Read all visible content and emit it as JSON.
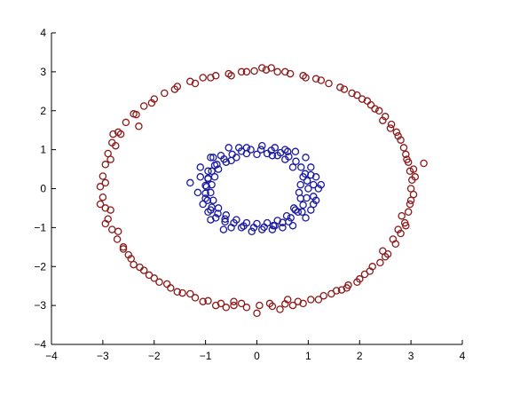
{
  "chart_data": {
    "type": "scatter",
    "title": "",
    "xlabel": "",
    "ylabel": "",
    "xlim": [
      -4,
      4
    ],
    "ylim": [
      -4,
      4
    ],
    "grid": false,
    "x_ticks": [
      -4,
      -3,
      -2,
      -1,
      0,
      1,
      2,
      3,
      4
    ],
    "y_ticks": [
      -4,
      -3,
      -2,
      -1,
      0,
      1,
      2,
      3,
      4
    ],
    "x_tick_labels": [
      "−4",
      "−3",
      "−2",
      "−1",
      "0",
      "1",
      "2",
      "3",
      "4"
    ],
    "y_tick_labels": [
      "−4",
      "−3",
      "−2",
      "−1",
      "0",
      "1",
      "2",
      "3",
      "4"
    ],
    "series": [
      {
        "color": "#8b1a1a",
        "marker": "open-circle",
        "points": [
          [
            3.0,
            0.0
          ],
          [
            3.02,
            0.22
          ],
          [
            2.98,
            0.45
          ],
          [
            2.95,
            0.68
          ],
          [
            2.9,
            0.88
          ],
          [
            2.86,
            1.05
          ],
          [
            2.8,
            1.25
          ],
          [
            2.72,
            1.45
          ],
          [
            2.62,
            1.65
          ],
          [
            2.5,
            1.85
          ],
          [
            2.38,
            2.0
          ],
          [
            2.22,
            2.15
          ],
          [
            2.05,
            2.3
          ],
          [
            1.85,
            2.45
          ],
          [
            1.62,
            2.6
          ],
          [
            1.4,
            2.7
          ],
          [
            1.15,
            2.82
          ],
          [
            0.9,
            2.9
          ],
          [
            0.65,
            2.95
          ],
          [
            0.4,
            3.0
          ],
          [
            0.18,
            3.05
          ],
          [
            -0.05,
            3.02
          ],
          [
            -0.3,
            3.0
          ],
          [
            -0.55,
            2.95
          ],
          [
            -0.8,
            2.9
          ],
          [
            -1.05,
            2.85
          ],
          [
            -1.3,
            2.75
          ],
          [
            -1.55,
            2.62
          ],
          [
            -1.8,
            2.45
          ],
          [
            -2.0,
            2.3
          ],
          [
            -2.2,
            2.12
          ],
          [
            -2.4,
            1.92
          ],
          [
            -2.55,
            1.7
          ],
          [
            -2.7,
            1.45
          ],
          [
            -2.82,
            1.18
          ],
          [
            -2.9,
            0.9
          ],
          [
            -2.95,
            0.62
          ],
          [
            -3.0,
            0.32
          ],
          [
            -3.05,
            0.05
          ],
          [
            -3.0,
            -0.22
          ],
          [
            -2.95,
            -0.5
          ],
          [
            -2.9,
            -0.78
          ],
          [
            -2.82,
            -1.05
          ],
          [
            -2.72,
            -1.3
          ],
          [
            -2.6,
            -1.55
          ],
          [
            -2.45,
            -1.8
          ],
          [
            -2.28,
            -2.02
          ],
          [
            -2.1,
            -2.22
          ],
          [
            -1.9,
            -2.4
          ],
          [
            -1.68,
            -2.55
          ],
          [
            -1.45,
            -2.68
          ],
          [
            -1.2,
            -2.8
          ],
          [
            -0.95,
            -2.88
          ],
          [
            -0.7,
            -2.95
          ],
          [
            -0.45,
            -3.0
          ],
          [
            -0.2,
            -3.05
          ],
          [
            0.05,
            -3.0
          ],
          [
            0.3,
            -3.02
          ],
          [
            0.55,
            -2.96
          ],
          [
            0.8,
            -2.9
          ],
          [
            1.05,
            -2.85
          ],
          [
            1.3,
            -2.75
          ],
          [
            1.55,
            -2.62
          ],
          [
            1.78,
            -2.48
          ],
          [
            2.0,
            -2.32
          ],
          [
            2.2,
            -2.12
          ],
          [
            2.4,
            -1.9
          ],
          [
            2.55,
            -1.68
          ],
          [
            2.7,
            -1.42
          ],
          [
            2.8,
            -1.15
          ],
          [
            2.88,
            -0.88
          ],
          [
            2.95,
            -0.6
          ],
          [
            3.0,
            -0.3
          ],
          [
            3.25,
            0.65
          ],
          [
            -2.65,
            1.4
          ],
          [
            -2.75,
            1.1
          ],
          [
            -2.5,
            -1.7
          ],
          [
            -2.6,
            -1.5
          ],
          [
            -2.2,
            -2.1
          ],
          [
            -1.3,
            -2.7
          ],
          [
            -1.05,
            -2.9
          ],
          [
            -0.6,
            -3.05
          ],
          [
            -0.45,
            -2.9
          ],
          [
            0.0,
            -3.2
          ],
          [
            0.25,
            -2.95
          ],
          [
            0.6,
            -2.85
          ],
          [
            0.9,
            -2.95
          ],
          [
            1.45,
            -2.7
          ],
          [
            1.65,
            -2.6
          ],
          [
            1.95,
            -2.4
          ],
          [
            2.1,
            -2.2
          ],
          [
            2.5,
            -1.75
          ],
          [
            2.65,
            -1.3
          ],
          [
            2.75,
            -1.05
          ],
          [
            2.9,
            -0.95
          ],
          [
            2.98,
            -0.4
          ],
          [
            3.05,
            0.5
          ],
          [
            2.92,
            0.75
          ],
          [
            2.75,
            1.35
          ],
          [
            2.6,
            1.55
          ],
          [
            2.45,
            1.75
          ],
          [
            2.3,
            2.05
          ],
          [
            2.15,
            2.25
          ],
          [
            1.95,
            2.4
          ],
          [
            1.7,
            2.55
          ],
          [
            1.25,
            2.78
          ],
          [
            0.95,
            2.85
          ],
          [
            0.55,
            3.0
          ],
          [
            0.28,
            3.1
          ],
          [
            0.1,
            3.1
          ],
          [
            -0.2,
            3.0
          ],
          [
            -0.5,
            2.9
          ],
          [
            -0.9,
            2.85
          ],
          [
            -1.2,
            2.7
          ],
          [
            -1.6,
            2.55
          ],
          [
            -2.05,
            2.2
          ],
          [
            -2.35,
            1.9
          ],
          [
            -2.3,
            1.6
          ],
          [
            -2.8,
            1.4
          ],
          [
            -2.85,
            0.75
          ],
          [
            -2.95,
            0.15
          ],
          [
            -3.05,
            -0.4
          ],
          [
            -2.85,
            -0.55
          ],
          [
            -2.95,
            -0.9
          ],
          [
            -2.7,
            -1.1
          ],
          [
            -2.4,
            -1.95
          ],
          [
            -2.0,
            -2.3
          ],
          [
            -1.75,
            -2.45
          ],
          [
            -1.55,
            -2.65
          ],
          [
            -0.8,
            -3.0
          ],
          [
            -0.3,
            -2.95
          ],
          [
            0.45,
            -3.1
          ],
          [
            0.7,
            -3.0
          ],
          [
            1.2,
            -2.85
          ],
          [
            1.75,
            -2.55
          ],
          [
            2.25,
            -2.0
          ],
          [
            2.45,
            -1.6
          ],
          [
            2.82,
            -0.7
          ],
          [
            3.05,
            -0.15
          ],
          [
            3.08,
            0.3
          ]
        ]
      },
      {
        "color": "#1a1aa0",
        "marker": "open-circle",
        "points": [
          [
            1.0,
            0.0
          ],
          [
            0.98,
            0.2
          ],
          [
            0.94,
            0.38
          ],
          [
            0.86,
            0.55
          ],
          [
            0.76,
            0.7
          ],
          [
            0.62,
            0.82
          ],
          [
            0.46,
            0.92
          ],
          [
            0.28,
            0.98
          ],
          [
            0.08,
            1.0
          ],
          [
            -0.12,
            1.0
          ],
          [
            -0.3,
            0.96
          ],
          [
            -0.48,
            0.88
          ],
          [
            -0.64,
            0.76
          ],
          [
            -0.78,
            0.62
          ],
          [
            -0.88,
            0.45
          ],
          [
            -0.95,
            0.27
          ],
          [
            -1.0,
            0.08
          ],
          [
            -1.0,
            -0.12
          ],
          [
            -0.96,
            -0.3
          ],
          [
            -0.88,
            -0.48
          ],
          [
            -0.76,
            -0.64
          ],
          [
            -0.62,
            -0.78
          ],
          [
            -0.45,
            -0.88
          ],
          [
            -0.26,
            -0.96
          ],
          [
            -0.06,
            -1.0
          ],
          [
            0.14,
            -0.99
          ],
          [
            0.32,
            -0.95
          ],
          [
            0.5,
            -0.87
          ],
          [
            0.66,
            -0.75
          ],
          [
            0.8,
            -0.6
          ],
          [
            0.9,
            -0.42
          ],
          [
            0.97,
            -0.24
          ],
          [
            1.15,
            0.3
          ],
          [
            1.2,
            0.0
          ],
          [
            1.1,
            -0.4
          ],
          [
            0.9,
            0.3
          ],
          [
            0.85,
            -0.25
          ],
          [
            0.7,
            0.55
          ],
          [
            0.72,
            -0.5
          ],
          [
            0.55,
            0.75
          ],
          [
            0.4,
            0.85
          ],
          [
            0.2,
            0.9
          ],
          [
            0.0,
            0.88
          ],
          [
            -0.2,
            0.9
          ],
          [
            -0.4,
            0.8
          ],
          [
            -0.6,
            0.68
          ],
          [
            -0.75,
            0.5
          ],
          [
            -0.82,
            0.3
          ],
          [
            -0.88,
            0.1
          ],
          [
            -0.9,
            -0.1
          ],
          [
            -0.85,
            -0.3
          ],
          [
            -0.75,
            -0.5
          ],
          [
            -0.6,
            -0.68
          ],
          [
            -0.4,
            -0.8
          ],
          [
            -0.2,
            -0.88
          ],
          [
            0.0,
            -0.9
          ],
          [
            0.2,
            -0.88
          ],
          [
            0.4,
            -0.82
          ],
          [
            0.58,
            -0.7
          ],
          [
            0.75,
            -0.55
          ],
          [
            1.05,
            0.55
          ],
          [
            1.1,
            -0.2
          ],
          [
            -1.1,
            0.3
          ],
          [
            -1.05,
            -0.4
          ],
          [
            -0.95,
            -0.6
          ],
          [
            -0.7,
            0.85
          ],
          [
            -0.35,
            1.05
          ],
          [
            0.1,
            1.1
          ],
          [
            0.55,
            1.0
          ],
          [
            0.95,
            0.8
          ],
          [
            1.1,
            0.1
          ],
          [
            0.95,
            -0.75
          ],
          [
            0.7,
            -0.95
          ],
          [
            0.3,
            -1.05
          ],
          [
            -0.1,
            -1.1
          ],
          [
            -0.5,
            -1.0
          ],
          [
            -0.9,
            -0.8
          ],
          [
            -1.15,
            -0.1
          ],
          [
            -1.1,
            0.55
          ],
          [
            -0.9,
            0.8
          ],
          [
            -0.55,
            1.05
          ],
          [
            0.35,
            1.05
          ],
          [
            0.75,
            0.95
          ],
          [
            1.05,
            0.35
          ],
          [
            0.85,
            0.1
          ],
          [
            0.82,
            -0.1
          ],
          [
            -0.82,
            0.6
          ],
          [
            -0.95,
            0.45
          ],
          [
            -1.0,
            -0.25
          ],
          [
            -0.8,
            -0.75
          ],
          [
            -0.3,
            -1.0
          ],
          [
            0.1,
            -1.05
          ],
          [
            0.5,
            -1.0
          ],
          [
            0.88,
            -0.6
          ],
          [
            1.05,
            -0.55
          ],
          [
            1.15,
            -0.3
          ],
          [
            -0.98,
            0.05
          ],
          [
            -0.9,
            -0.55
          ],
          [
            0.6,
            0.95
          ],
          [
            -0.2,
            1.05
          ],
          [
            0.3,
            0.85
          ],
          [
            -0.5,
            0.72
          ],
          [
            0.62,
            -0.85
          ],
          [
            -0.62,
            -0.85
          ],
          [
            -1.3,
            0.15
          ],
          [
            -0.65,
            -1.05
          ],
          [
            -0.95,
            0.25
          ],
          [
            -0.85,
            0.8
          ],
          [
            1.25,
            0.1
          ],
          [
            0.35,
            -0.95
          ]
        ]
      }
    ]
  }
}
